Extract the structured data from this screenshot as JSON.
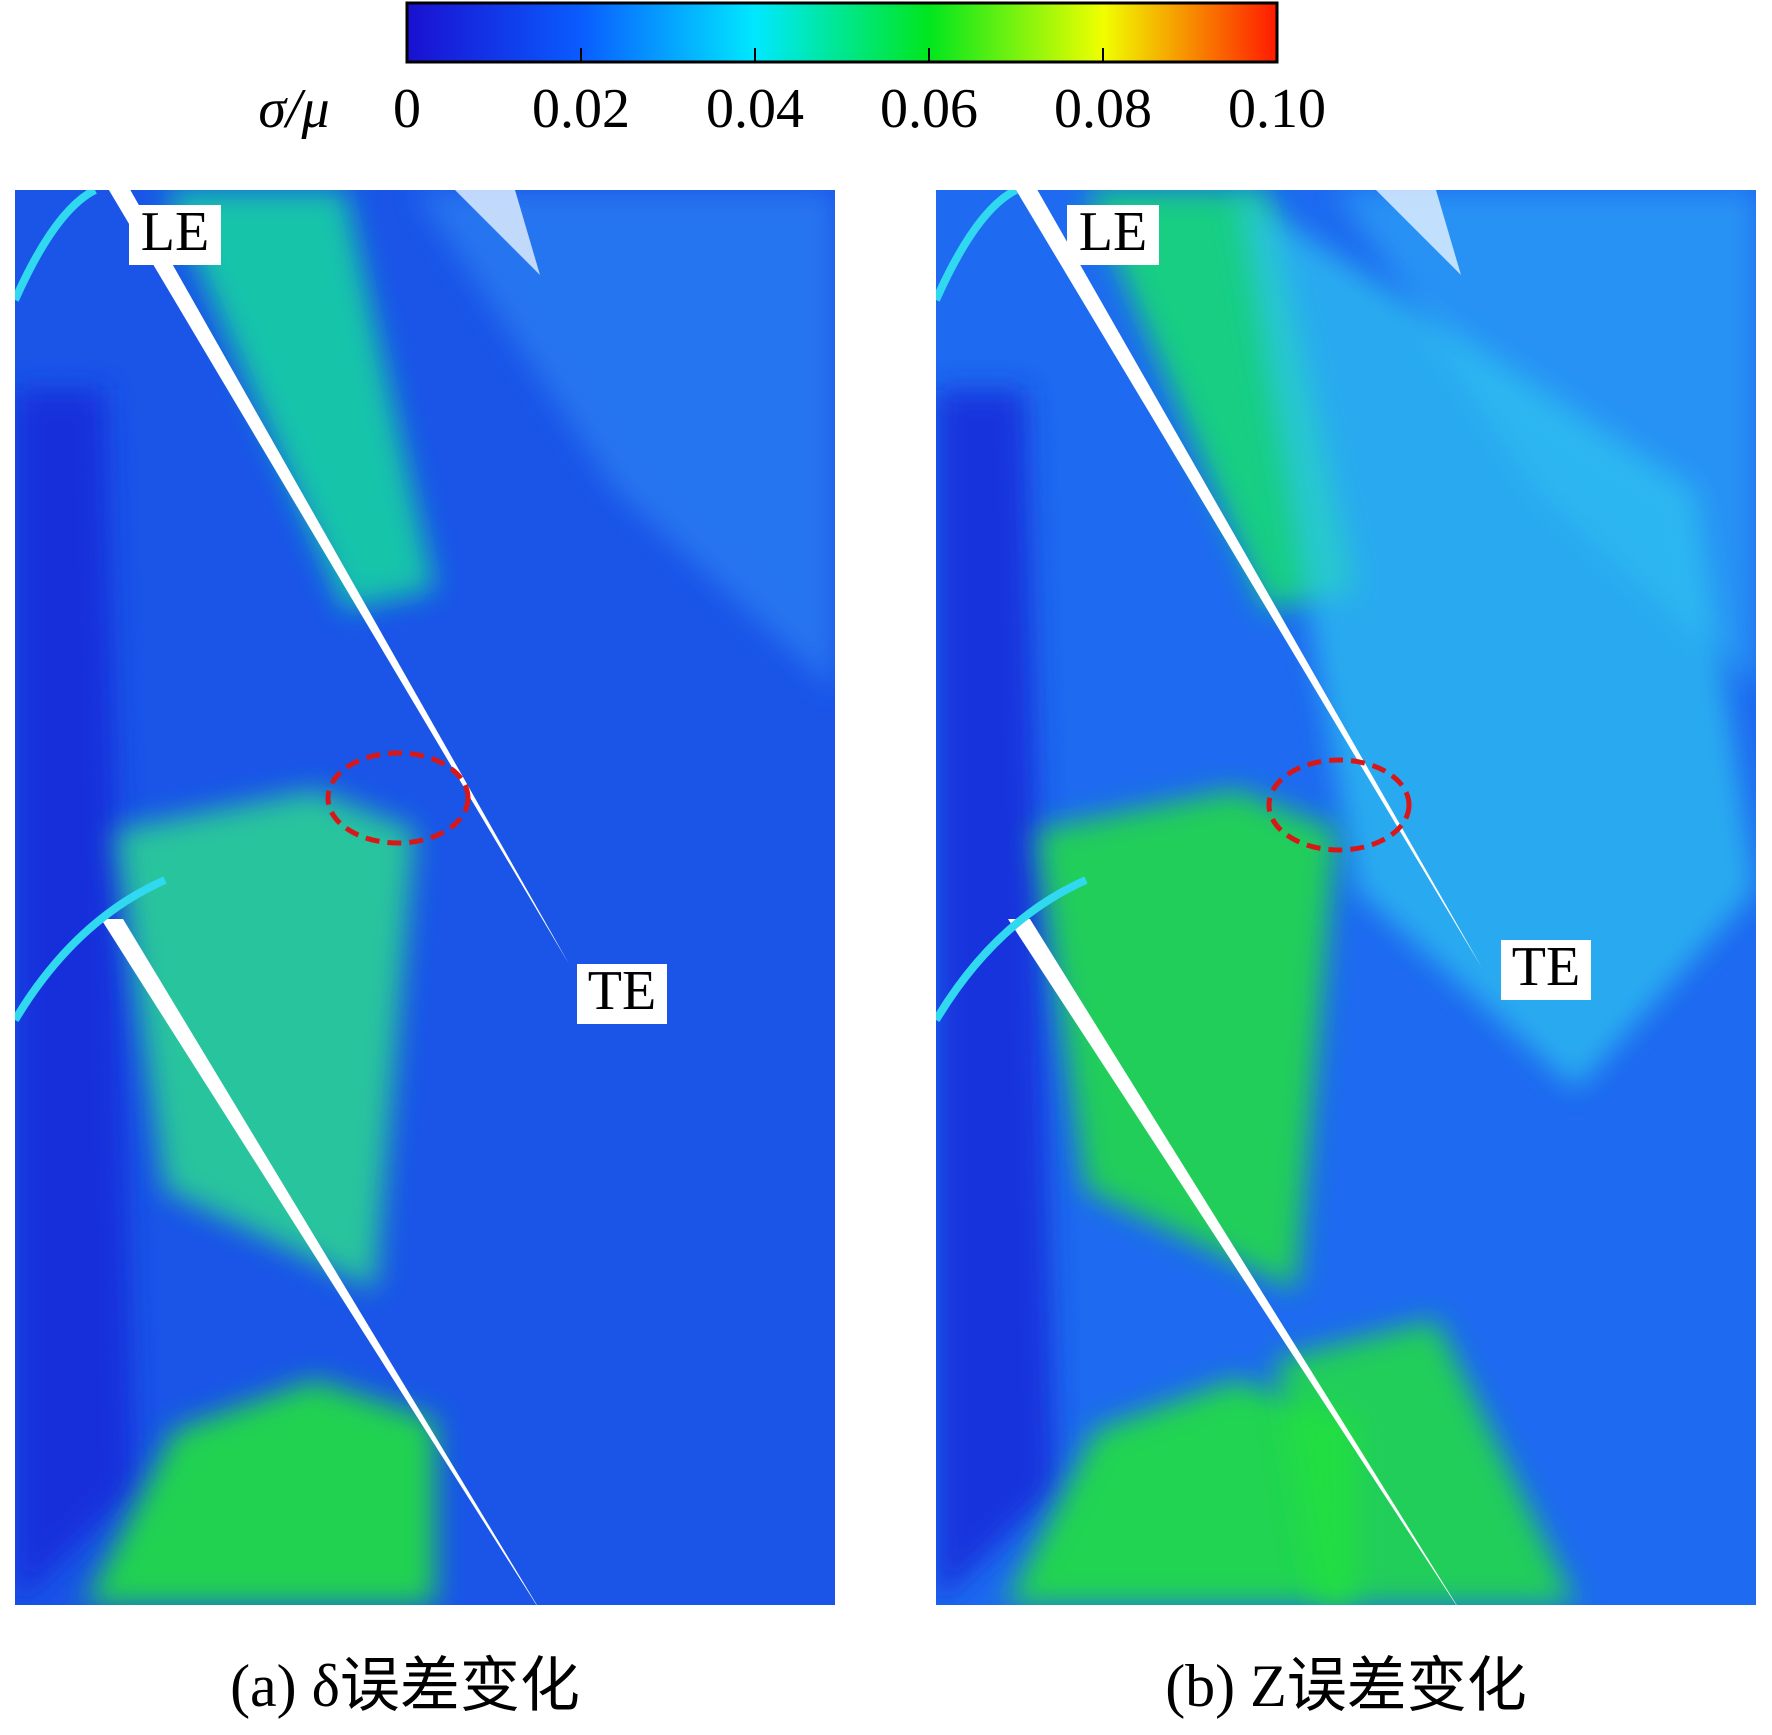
{
  "chart_data": {
    "type": "contour",
    "colorbar": {
      "label": "σ/μ",
      "lim": [
        0,
        0.1
      ],
      "ticks": [
        0,
        0.02,
        0.04,
        0.06,
        0.08,
        {
          "value": 0.1,
          "label": "0.10"
        }
      ],
      "colors": [
        "#1a10d0",
        "#0a5cff",
        "#00e8ff",
        "#00e61e",
        "#f0ff00",
        "#ff1a00"
      ]
    },
    "panels": [
      {
        "caption": "(a) δ误差变化",
        "leading_edge": "LE",
        "trailing_edge": "TE"
      },
      {
        "caption": "(b) Z误差变化",
        "leading_edge": "LE",
        "trailing_edge": "TE"
      }
    ]
  }
}
